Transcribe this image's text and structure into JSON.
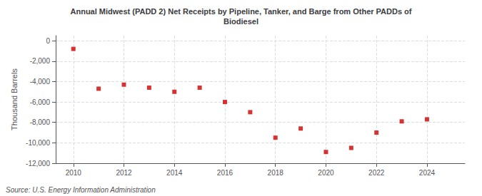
{
  "chart_data": {
    "type": "scatter",
    "title": "Annual Midwest (PADD 2) Net Receipts by Pipeline, Tanker, and Barge from Other PADDs of\nBiodiesel",
    "ylabel": "Thousand Barrels",
    "annotation": "Source: U.S. Energy Information Administration",
    "x": [
      2010,
      2011,
      2012,
      2013,
      2014,
      2015,
      2016,
      2017,
      2018,
      2019,
      2020,
      2021,
      2022,
      2023,
      2024
    ],
    "values": [
      -800,
      -4700,
      -4300,
      -4600,
      -5000,
      -4600,
      -6000,
      -7000,
      -9500,
      -8600,
      -10900,
      -10500,
      -9000,
      -7900,
      -7700
    ],
    "color": "#cc0000",
    "marker": "square",
    "xlim": [
      2009.3,
      2025.5
    ],
    "xticks": [
      2010,
      2012,
      2014,
      2016,
      2018,
      2020,
      2022,
      2024
    ],
    "ylim": [
      -12000,
      500
    ],
    "yticks": [
      0,
      {
        "value": -2000,
        "label": "-2,000"
      },
      {
        "value": -4000,
        "label": "-4,000"
      },
      {
        "value": -6000,
        "label": "-6,000"
      },
      {
        "value": -8000,
        "label": "-8,000"
      },
      {
        "value": -10000,
        "label": "-10,000"
      },
      {
        "value": -12000,
        "label": "-12,000"
      }
    ],
    "grid": true
  }
}
